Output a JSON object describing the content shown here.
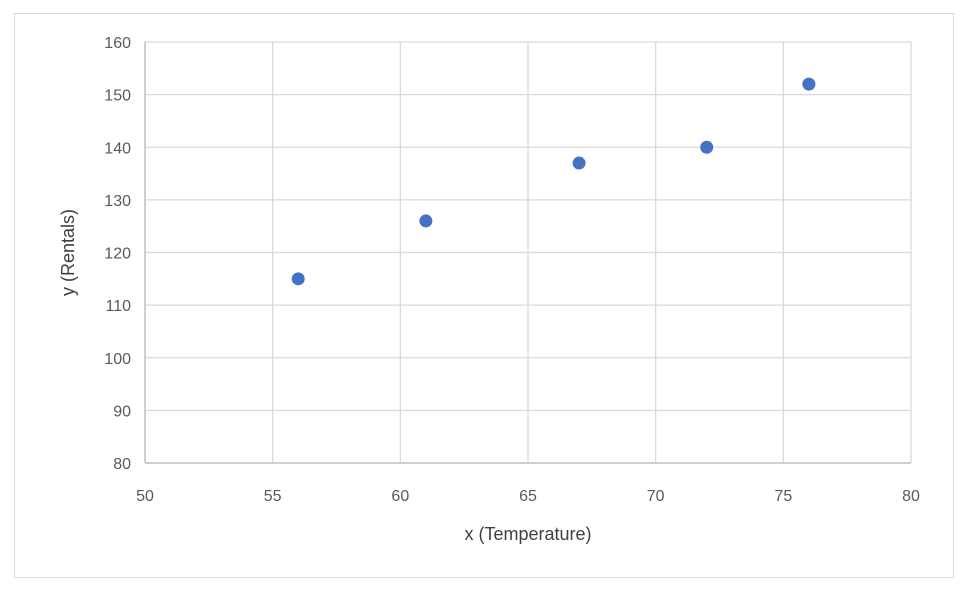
{
  "chart_data": {
    "type": "scatter",
    "title": "",
    "xlabel": "x (Temperature)",
    "ylabel": "y (Rentals)",
    "xlim": [
      50,
      80
    ],
    "ylim": [
      80,
      160
    ],
    "x_ticks": [
      50,
      55,
      60,
      65,
      70,
      75,
      80
    ],
    "y_ticks": [
      80,
      90,
      100,
      110,
      120,
      130,
      140,
      150,
      160
    ],
    "grid": true,
    "legend": "none",
    "marker_color": "#4472c4",
    "series": [
      {
        "x": [
          56,
          61,
          67,
          72,
          76
        ],
        "y": [
          115,
          126,
          137,
          140,
          152
        ]
      }
    ]
  }
}
